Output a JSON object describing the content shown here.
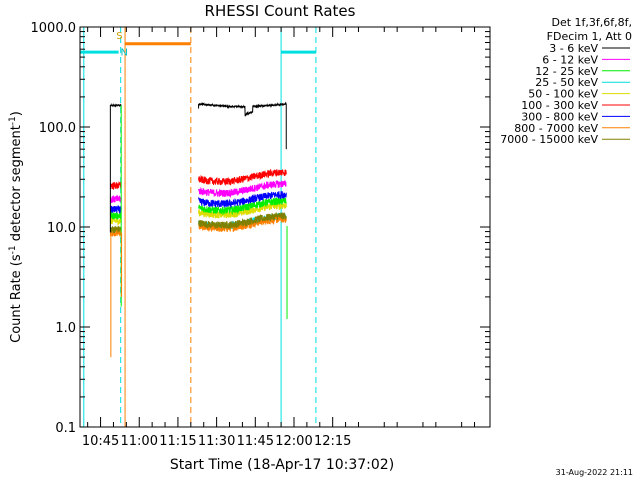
{
  "chart_data": {
    "type": "line",
    "title": "RHESSI Count Rates",
    "xlabel": "Start Time (18-Apr-17 10:37:02)",
    "ylabel_prefix": "Count Rate (s",
    "ylabel_exp": "-1",
    "ylabel_suffix": " detector segment",
    "ylabel_exp2": "-1",
    "ylabel_close": ")",
    "y_scale": "log",
    "ylim": [
      0.1,
      1000.0
    ],
    "xlim_minutes": [
      37.03,
      196.0
    ],
    "x_ticks": [
      {
        "label": "10:45",
        "minute": 45
      },
      {
        "label": "11:00",
        "minute": 60
      },
      {
        "label": "11:15",
        "minute": 75
      },
      {
        "label": "11:30",
        "minute": 90
      },
      {
        "label": "11:45",
        "minute": 105
      },
      {
        "label": "12:00",
        "minute": 120
      },
      {
        "label": "12:15",
        "minute": 135
      }
    ],
    "y_ticks": [
      {
        "label": "0.1",
        "value": 0.1
      },
      {
        "label": "1.0",
        "value": 1.0
      },
      {
        "label": "10.0",
        "value": 10.0
      },
      {
        "label": "100.0",
        "value": 100.0
      },
      {
        "label": "1000.0",
        "value": 1000.0
      }
    ],
    "legend_header": [
      "Det 1f,3f,6f,8f,",
      "FDecim 1, Att 0"
    ],
    "legend_placement": "top-right",
    "series": [
      {
        "name": "3 - 6 keV",
        "color": "#000000",
        "level1": 165,
        "level2": 170,
        "dip": 133
      },
      {
        "name": "6 - 12 keV",
        "color": "#ff00ff",
        "level1": 19,
        "level2": 23
      },
      {
        "name": "12 - 25 keV",
        "color": "#00ee00",
        "level1": 13,
        "level2": 15.5
      },
      {
        "name": "25 - 50 keV",
        "color": "#00dddd",
        "level1": 9.2,
        "level2": 10.8
      },
      {
        "name": "50 - 100 keV",
        "color": "#dddd00",
        "level1": 11.5,
        "level2": 14
      },
      {
        "name": "100 - 300 keV",
        "color": "#ff0000",
        "level1": 26,
        "level2": 30
      },
      {
        "name": "300 - 800 keV",
        "color": "#0000ff",
        "level1": 15,
        "level2": 18
      },
      {
        "name": "800 - 7000 keV",
        "color": "#ff8000",
        "level1": 8.8,
        "level2": 10.2
      },
      {
        "name": "7000 - 15000 keV",
        "color": "#808000",
        "level1": 9.5,
        "level2": 11
      }
    ],
    "segments_minutes": [
      [
        48.8,
        53.0
      ],
      [
        83.0,
        117.0
      ]
    ],
    "saa_bars": [
      {
        "color": "#00e0e0",
        "start": 37.0,
        "end": 52.0,
        "value": 560
      },
      {
        "color": "#ff8000",
        "start": 54.5,
        "end": 80.0,
        "value": 680
      },
      {
        "color": "#00e0e0",
        "start": 115.0,
        "end": 128.5,
        "value": 560
      }
    ],
    "vlines": [
      {
        "minute": 38.5,
        "color": "#00e0e0",
        "style": "solid"
      },
      {
        "minute": 52.8,
        "color": "#00e0e0",
        "style": "dashed"
      },
      {
        "minute": 54.5,
        "color": "#ff8000",
        "style": "solid"
      },
      {
        "minute": 80.0,
        "color": "#ff8000",
        "style": "dashed"
      },
      {
        "minute": 115.0,
        "color": "#00e0e0",
        "style": "solid"
      },
      {
        "minute": 128.5,
        "color": "#00e0e0",
        "style": "dashed"
      }
    ],
    "annotations": [
      {
        "text": "S",
        "color": "#c8a000",
        "minute": 52.3,
        "value": 760
      },
      {
        "text": "N",
        "color": "#00c0c0",
        "minute": 54.2,
        "value": 520
      }
    ]
  },
  "footer_timestamp": "31-Aug-2022 21:11"
}
